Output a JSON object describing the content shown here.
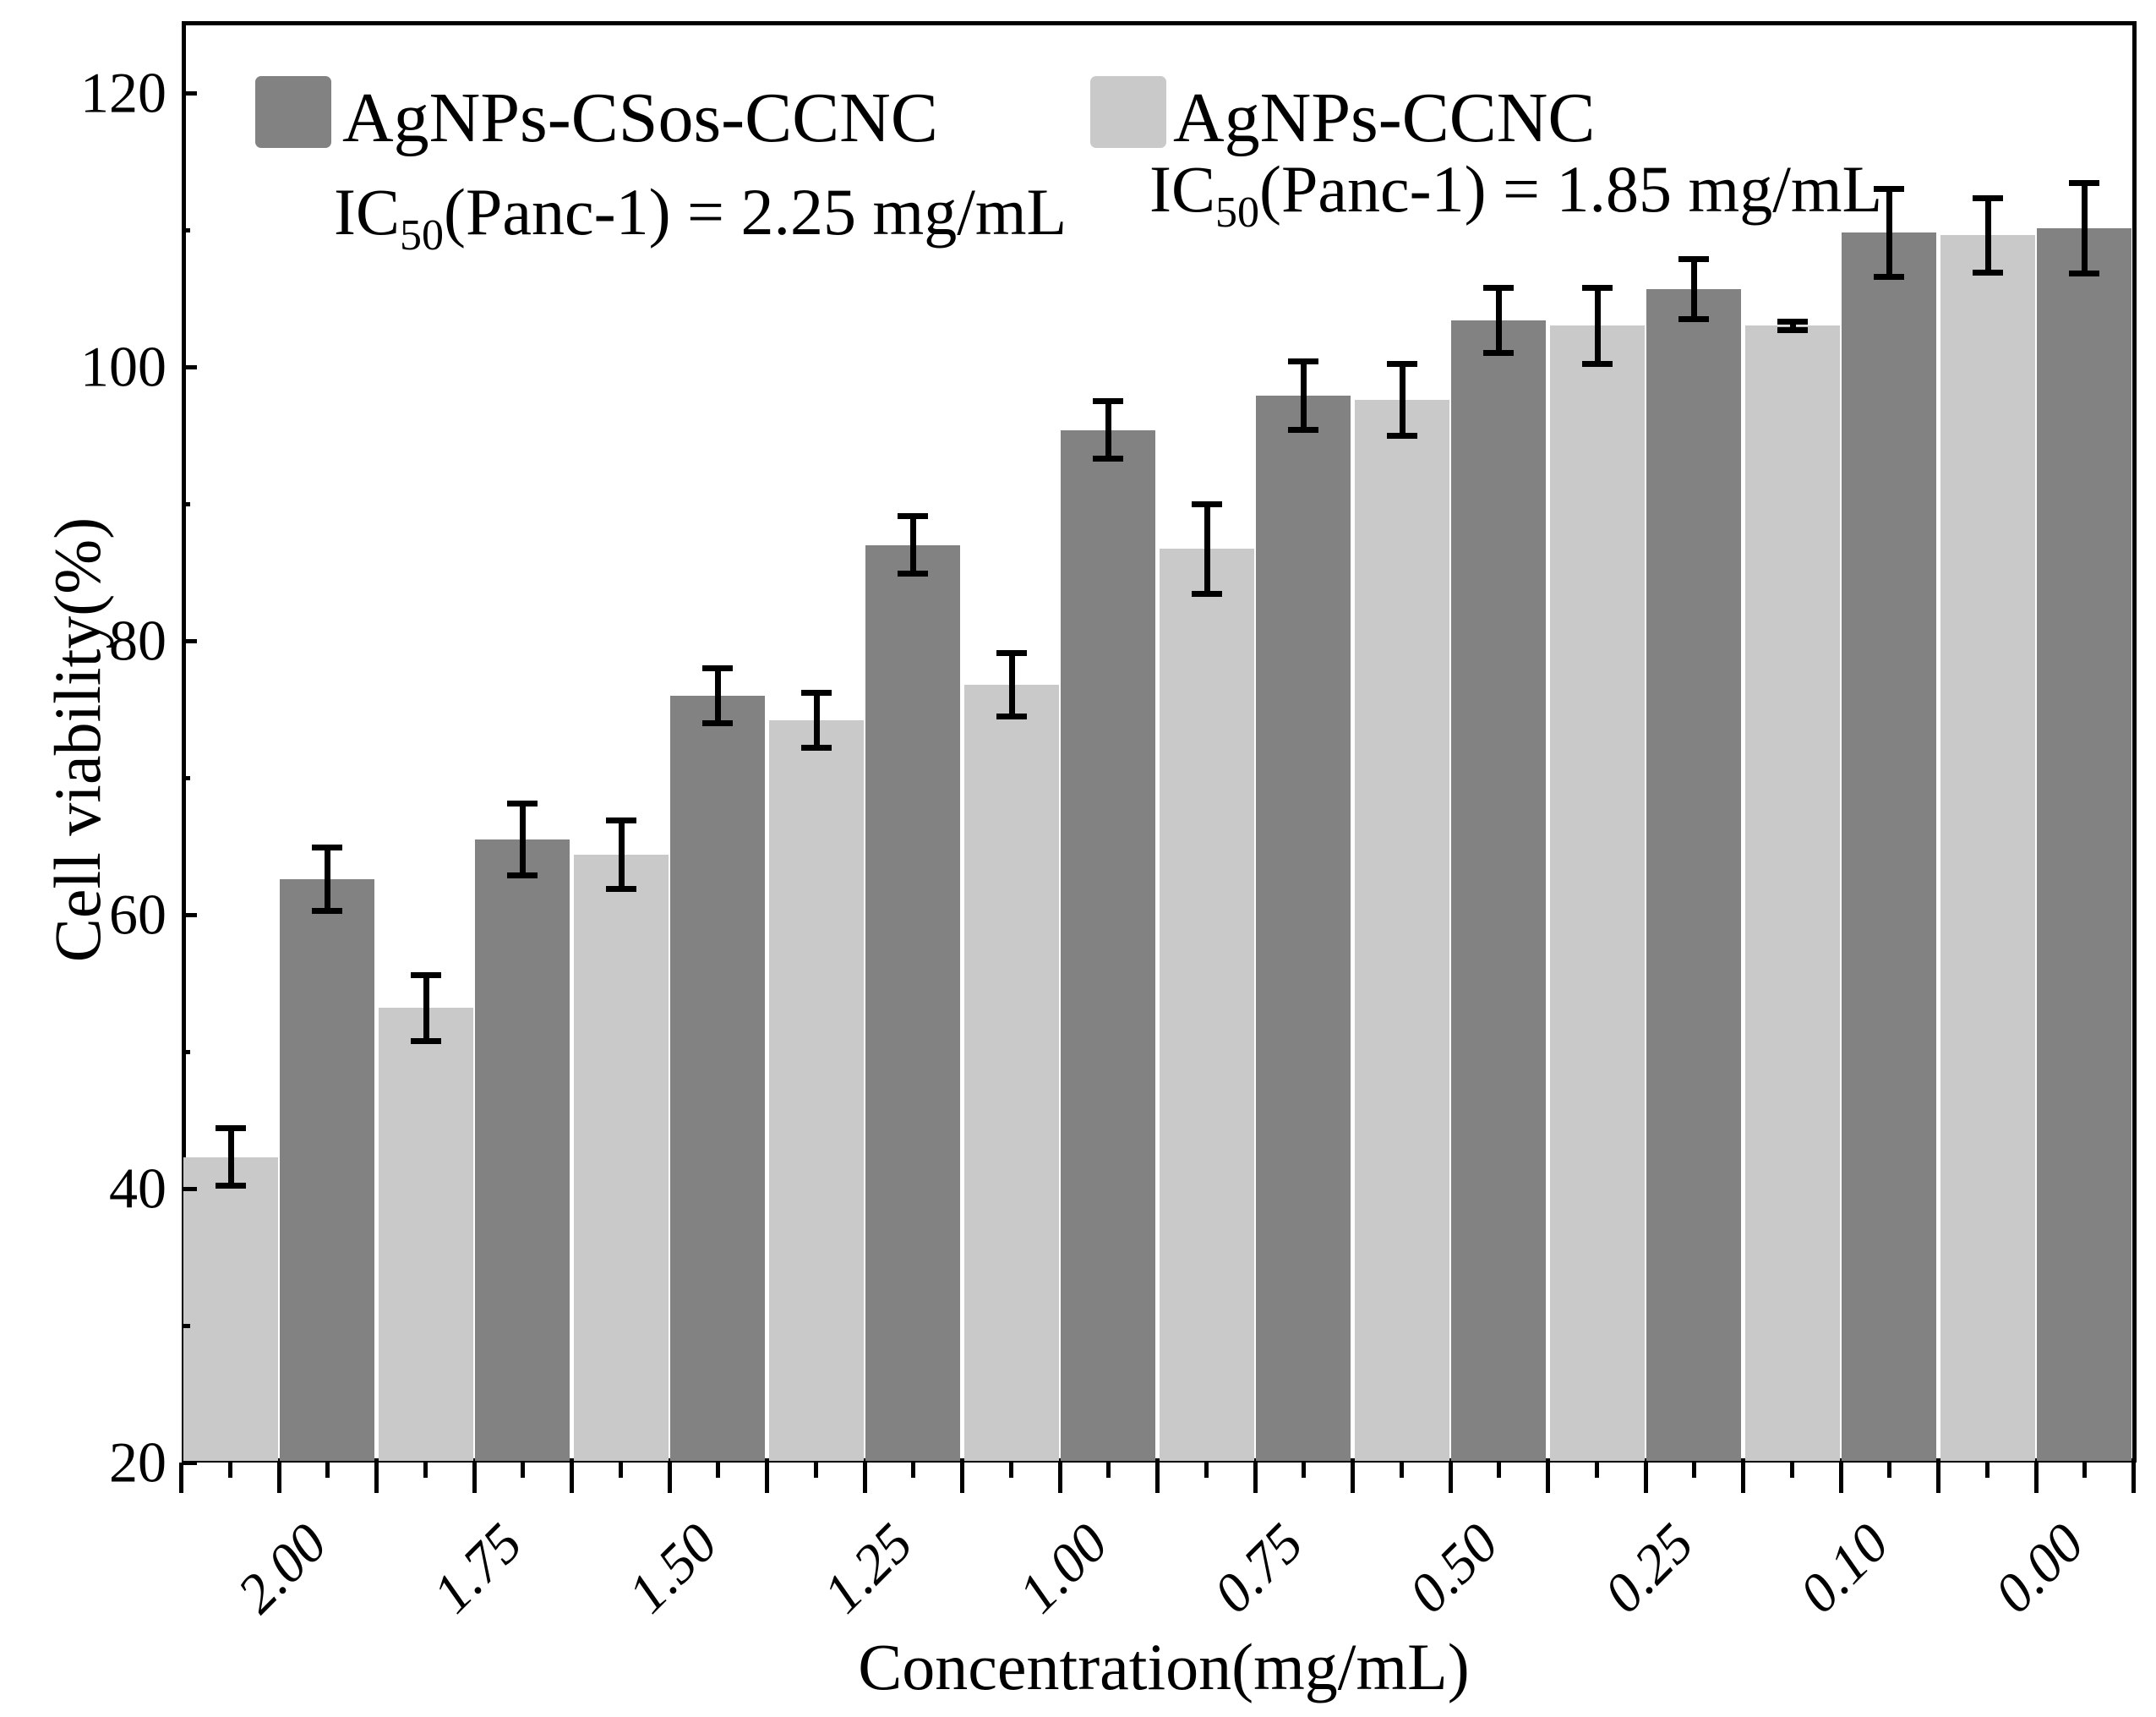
{
  "chart_data": {
    "type": "bar",
    "title": "",
    "xlabel": "Concentration(mg/mL)",
    "ylabel": "Cell viability(%)",
    "categories": [
      "2.00",
      "1.75",
      "1.50",
      "1.25",
      "1.00",
      "0.75",
      "0.50",
      "0.25",
      "0.10",
      "0.00"
    ],
    "series": [
      {
        "name": "AgNPs-CCNC",
        "position_in_pair": "left",
        "color": "#c9c9c9",
        "values": [
          42.3,
          53.2,
          64.4,
          74.2,
          76.8,
          86.7,
          97.6,
          103.0,
          103.0,
          109.6
        ],
        "errors": [
          2.1,
          2.4,
          2.5,
          2.0,
          2.3,
          3.3,
          2.6,
          2.8,
          0.3,
          2.7
        ],
        "ic50_prefix": "IC",
        "ic50_sub": "50",
        "ic50_rest": "(Panc-1) = 1.85 mg/mL"
      },
      {
        "name": "AgNPs-CSos-CCNC",
        "position_in_pair": "right",
        "color": "#828282",
        "values": [
          62.6,
          65.5,
          76.0,
          87.0,
          95.4,
          97.9,
          103.4,
          105.7,
          109.8,
          110.1
        ],
        "errors": [
          2.3,
          2.6,
          2.0,
          2.1,
          2.1,
          2.5,
          2.4,
          2.2,
          3.2,
          3.3
        ],
        "ic50_prefix": "IC",
        "ic50_sub": "50",
        "ic50_rest": "(Panc-1) = 2.25 mg/mL"
      }
    ],
    "ylim": [
      20,
      125
    ],
    "yticks_major": [
      20,
      40,
      60,
      80,
      100,
      120
    ],
    "yticks_minor": [
      30,
      50,
      70,
      90,
      110
    ],
    "grid": "off",
    "legend_position": "top-inside",
    "error_bar_color": "#000000",
    "frame_color": "#000000"
  }
}
